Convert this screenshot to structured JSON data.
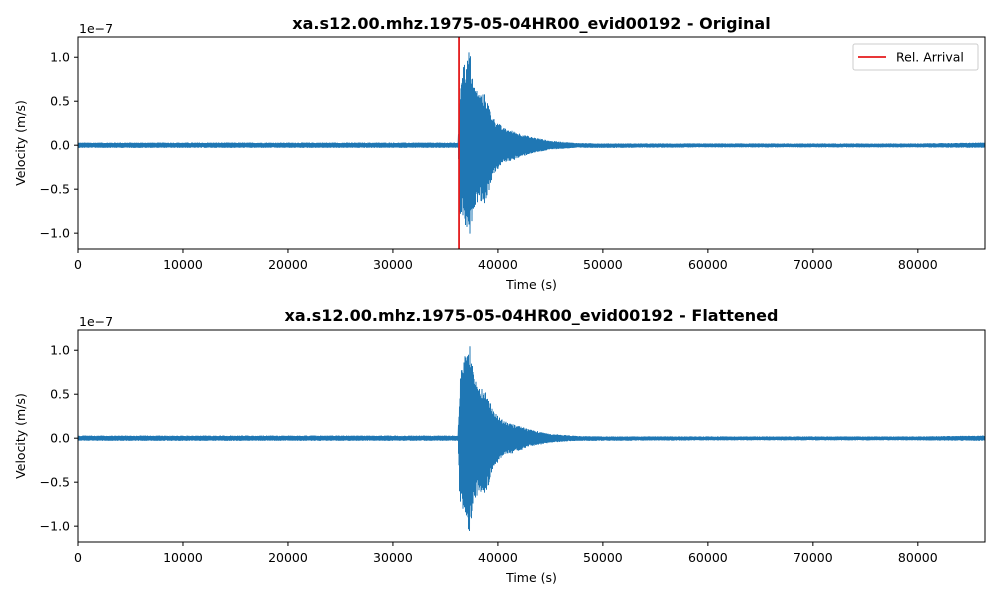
{
  "colors": {
    "signal": "#1f77b4",
    "arrival": "#e41a1c",
    "axes": "#000000",
    "legend_border": "#cccccc"
  },
  "chart_data": [
    {
      "type": "line",
      "title": "xa.s12.00.mhz.1975-05-04HR00_evid00192 - Original",
      "xlabel": "Time (s)",
      "ylabel": "Velocity (m/s)",
      "y_offset_text": "1e−7",
      "xlim": [
        0,
        86400
      ],
      "ylim": [
        -1.18,
        1.23
      ],
      "x_ticks": [
        0,
        10000,
        20000,
        30000,
        40000,
        50000,
        60000,
        70000,
        80000
      ],
      "x_tick_labels": [
        "0",
        "10000",
        "20000",
        "30000",
        "40000",
        "50000",
        "60000",
        "70000",
        "80000"
      ],
      "y_ticks": [
        1.0,
        0.5,
        0.0,
        -0.5,
        -1.0
      ],
      "y_tick_labels": [
        "1.0",
        "0.5",
        "0.0",
        "−0.5",
        "−1.0"
      ],
      "legend": {
        "position": "upper-right",
        "entries": [
          {
            "label": "Rel. Arrival",
            "color": "#e41a1c"
          }
        ]
      },
      "vline": {
        "x": 36300,
        "label": "Rel. Arrival"
      },
      "series": [
        {
          "envelope": {
            "t": [
              0,
              36200,
              36400,
              36600,
              37000,
              37300,
              37700,
              38200,
              38800,
              39500,
              40500,
              41500,
              43000,
              45000,
              47500,
              50000,
              60000,
              70000,
              80000,
              86400
            ],
            "upper": [
              0.03,
              0.03,
              0.62,
              0.97,
              0.92,
              1.12,
              0.7,
              0.6,
              0.58,
              0.32,
              0.2,
              0.16,
              0.1,
              0.05,
              0.025,
              0.02,
              0.02,
              0.02,
              0.02,
              0.03
            ],
            "lower": [
              -0.03,
              -0.03,
              -0.85,
              -0.8,
              -0.98,
              -1.08,
              -0.72,
              -0.62,
              -0.68,
              -0.35,
              -0.2,
              -0.17,
              -0.1,
              -0.05,
              -0.03,
              -0.03,
              -0.025,
              -0.025,
              -0.025,
              -0.03
            ]
          }
        }
      ]
    },
    {
      "type": "line",
      "title": "xa.s12.00.mhz.1975-05-04HR00_evid00192 - Flattened",
      "xlabel": "Time (s)",
      "ylabel": "Velocity (m/s)",
      "y_offset_text": "1e−7",
      "xlim": [
        0,
        86400
      ],
      "ylim": [
        -1.18,
        1.23
      ],
      "x_ticks": [
        0,
        10000,
        20000,
        30000,
        40000,
        50000,
        60000,
        70000,
        80000
      ],
      "x_tick_labels": [
        "0",
        "10000",
        "20000",
        "30000",
        "40000",
        "50000",
        "60000",
        "70000",
        "80000"
      ],
      "y_ticks": [
        1.0,
        0.5,
        0.0,
        -0.5,
        -1.0
      ],
      "y_tick_labels": [
        "1.0",
        "0.5",
        "0.0",
        "−0.5",
        "−1.0"
      ],
      "series": [
        {
          "envelope": {
            "t": [
              0,
              36200,
              36400,
              36600,
              37000,
              37300,
              37700,
              38200,
              38800,
              39500,
              40500,
              41500,
              43000,
              45000,
              47500,
              50000,
              60000,
              70000,
              80000,
              86400
            ],
            "upper": [
              0.03,
              0.03,
              0.62,
              0.97,
              1.02,
              1.12,
              0.7,
              0.6,
              0.58,
              0.32,
              0.2,
              0.16,
              0.1,
              0.05,
              0.025,
              0.02,
              0.02,
              0.02,
              0.02,
              0.03
            ],
            "lower": [
              -0.03,
              -0.03,
              -0.85,
              -0.8,
              -0.98,
              -1.08,
              -0.72,
              -0.62,
              -0.68,
              -0.35,
              -0.2,
              -0.17,
              -0.1,
              -0.05,
              -0.03,
              -0.03,
              -0.025,
              -0.025,
              -0.025,
              -0.03
            ]
          }
        }
      ]
    }
  ]
}
